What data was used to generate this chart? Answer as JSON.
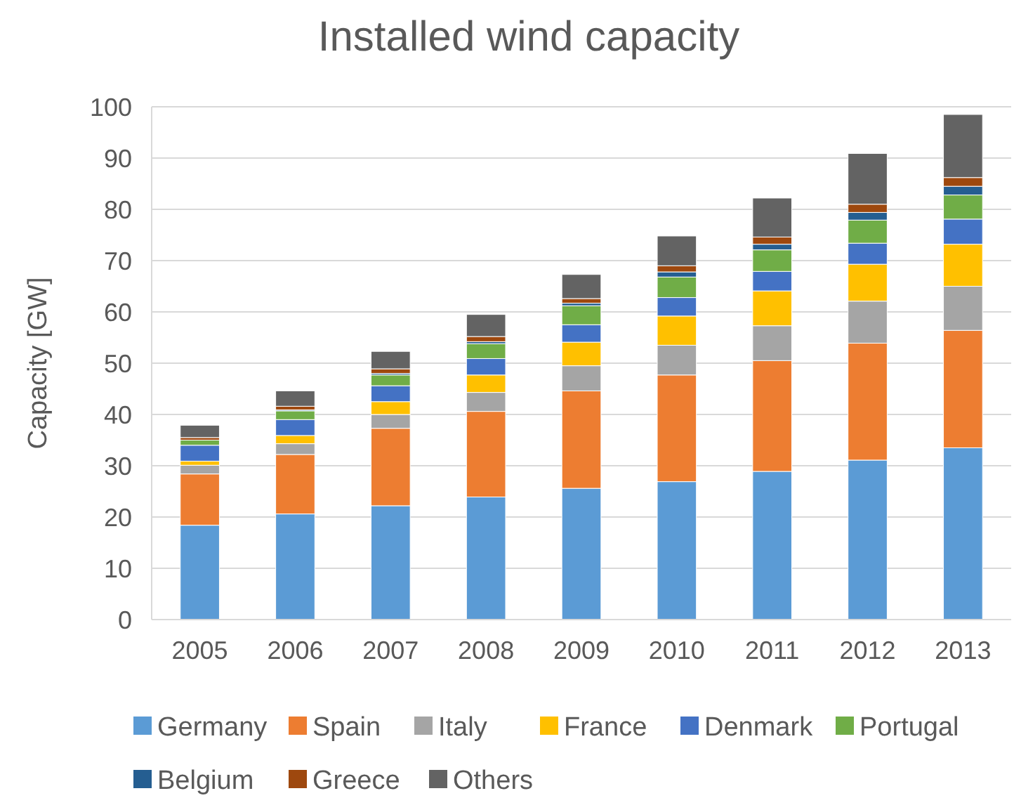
{
  "chart_data": {
    "type": "bar",
    "title": "Installed wind capacity",
    "ylabel": "Capacity [GW]",
    "stacked": true,
    "categories": [
      "2005",
      "2006",
      "2007",
      "2008",
      "2009",
      "2010",
      "2011",
      "2012",
      "2013"
    ],
    "series": [
      {
        "name": "Germany",
        "color": "#5b9bd5",
        "values": [
          18.4,
          20.6,
          22.2,
          23.9,
          25.6,
          26.9,
          28.9,
          31.1,
          33.5
        ]
      },
      {
        "name": "Spain",
        "color": "#ed7d31",
        "values": [
          10.0,
          11.6,
          15.1,
          16.7,
          19.0,
          20.8,
          21.6,
          22.8,
          22.9
        ]
      },
      {
        "name": "Italy",
        "color": "#a5a5a5",
        "values": [
          1.7,
          2.1,
          2.7,
          3.7,
          4.9,
          5.8,
          6.8,
          8.2,
          8.6
        ]
      },
      {
        "name": "France",
        "color": "#ffc000",
        "values": [
          0.8,
          1.6,
          2.5,
          3.4,
          4.6,
          5.7,
          6.8,
          7.2,
          8.2
        ]
      },
      {
        "name": "Denmark",
        "color": "#4472c4",
        "values": [
          3.1,
          3.1,
          3.1,
          3.2,
          3.4,
          3.6,
          3.8,
          4.1,
          4.9
        ]
      },
      {
        "name": "Portugal",
        "color": "#70ad47",
        "values": [
          1.0,
          1.7,
          2.1,
          2.9,
          3.7,
          4.0,
          4.2,
          4.5,
          4.7
        ]
      },
      {
        "name": "Belgium",
        "color": "#255e91",
        "values": [
          null,
          0.2,
          0.3,
          0.4,
          0.5,
          1.0,
          1.1,
          1.5,
          1.7
        ]
      },
      {
        "name": "Greece",
        "color": "#9e480e",
        "values": [
          0.5,
          0.7,
          0.9,
          1.0,
          0.9,
          1.2,
          1.4,
          1.6,
          1.7
        ]
      },
      {
        "name": "Others",
        "color": "#636363",
        "values": [
          2.4,
          3.0,
          3.4,
          4.3,
          4.7,
          5.8,
          7.6,
          9.9,
          12.3
        ]
      }
    ],
    "ylim": [
      0,
      100
    ],
    "yticks": [
      0,
      10,
      20,
      30,
      40,
      50,
      60,
      70,
      80,
      90,
      100
    ],
    "grid": "y",
    "legend": "bottom"
  }
}
